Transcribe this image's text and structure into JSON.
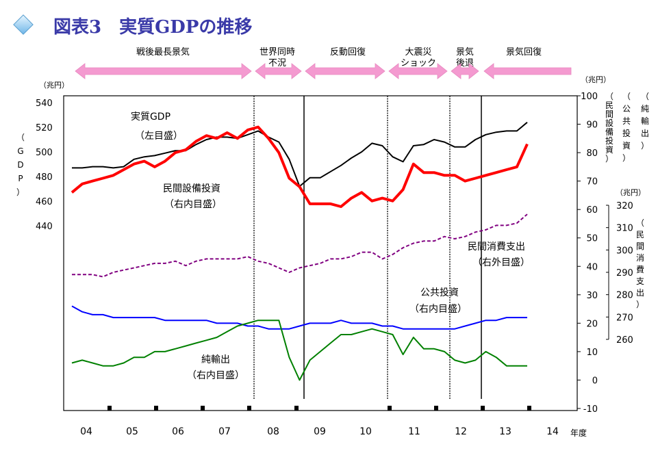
{
  "title": "図表3　実質GDPの推移",
  "chart_data": {
    "type": "line",
    "x_tick_labels": [
      "04",
      "05",
      "06",
      "07",
      "08",
      "09",
      "10",
      "11",
      "12",
      "13",
      "14"
    ],
    "x_unit": "年度",
    "periods": [
      {
        "label_lines": [
          "戦後最長景気"
        ],
        "arrow": "both"
      },
      {
        "label_lines": [
          "世界同時",
          "不況"
        ],
        "arrow": "both"
      },
      {
        "label_lines": [
          "反動回復"
        ],
        "arrow": "both"
      },
      {
        "label_lines": [
          "大震災",
          "ショック"
        ],
        "arrow": "both"
      },
      {
        "label_lines": [
          "景気",
          "後退"
        ],
        "arrow": "both"
      },
      {
        "label_lines": [
          "景気回復"
        ],
        "arrow": "left"
      }
    ],
    "axes": {
      "left": {
        "unit": "（兆円）",
        "label": "GDP",
        "range": [
          440,
          540
        ],
        "ticks": [
          440,
          460,
          480,
          500,
          520,
          540
        ]
      },
      "right_inner": {
        "unit": "（兆円）",
        "labels": [
          "民間設備投資",
          "公共投資",
          "純輸出"
        ],
        "range": [
          -10,
          100
        ],
        "ticks": [
          -10,
          0,
          10,
          20,
          30,
          40,
          50,
          60,
          70,
          80,
          90,
          100
        ]
      },
      "right_outer": {
        "unit": "（兆円）",
        "label": "民間消費支出",
        "range": [
          260,
          320
        ],
        "ticks": [
          260,
          270,
          280,
          290,
          300,
          310,
          320
        ]
      }
    },
    "series": [
      {
        "name": "実質GDP",
        "axis_label": "（左目盛）",
        "color": "#000000",
        "style": "solid",
        "values": [
          487,
          487,
          488,
          488,
          487,
          488,
          494,
          496,
          497,
          499,
          501,
          501,
          506,
          510,
          512,
          512,
          511,
          514,
          517,
          512,
          508,
          494,
          472,
          479,
          479,
          484,
          489,
          495,
          500,
          507,
          505,
          496,
          492,
          505,
          506,
          510,
          508,
          504,
          504,
          510,
          514,
          516,
          517,
          517,
          524
        ]
      },
      {
        "name": "民間設備投資",
        "axis_label": "（右内目盛）",
        "color": "#ff0000",
        "style": "thick",
        "values": [
          66,
          69,
          70,
          71,
          72,
          74,
          76,
          77,
          75,
          77,
          80,
          81,
          84,
          86,
          85,
          87,
          85,
          88,
          89,
          85,
          80,
          71,
          68,
          62,
          62,
          62,
          61,
          64,
          66,
          63,
          64,
          63,
          67,
          76,
          73,
          73,
          72,
          72,
          70,
          71,
          72,
          73,
          74,
          75,
          83
        ]
      },
      {
        "name": "民間消費支出",
        "axis_label": "（右外目盛）",
        "color": "#800080",
        "style": "dashed",
        "values": [
          289,
          289,
          289,
          288,
          290,
          291,
          292,
          293,
          294,
          294,
          295,
          293,
          295,
          296,
          296,
          296,
          296,
          297,
          295,
          294,
          292,
          290,
          292,
          293,
          294,
          296,
          296,
          297,
          299,
          299,
          296,
          298,
          301,
          303,
          304,
          304,
          306,
          305,
          306,
          308,
          309,
          311,
          311,
          312,
          316
        ]
      },
      {
        "name": "公共投資",
        "axis_label": "（右内目盛）",
        "color": "#0000ff",
        "style": "solid",
        "values": [
          26,
          24,
          23,
          23,
          22,
          22,
          22,
          22,
          22,
          21,
          21,
          21,
          21,
          21,
          20,
          20,
          20,
          19,
          19,
          18,
          18,
          18,
          19,
          20,
          20,
          20,
          21,
          20,
          20,
          20,
          19,
          19,
          18,
          18,
          18,
          18,
          18,
          18,
          19,
          20,
          21,
          21,
          22,
          22,
          22
        ]
      },
      {
        "name": "純輸出",
        "axis_label": "（右内目盛）",
        "color": "#008000",
        "style": "solid",
        "values": [
          6,
          7,
          6,
          5,
          5,
          6,
          8,
          8,
          10,
          10,
          11,
          12,
          13,
          14,
          15,
          17,
          19,
          20,
          21,
          21,
          21,
          8,
          0,
          7,
          10,
          13,
          16,
          16,
          17,
          18,
          17,
          16,
          9,
          15,
          11,
          11,
          10,
          7,
          6,
          7,
          10,
          8,
          5,
          5,
          5
        ]
      }
    ]
  }
}
